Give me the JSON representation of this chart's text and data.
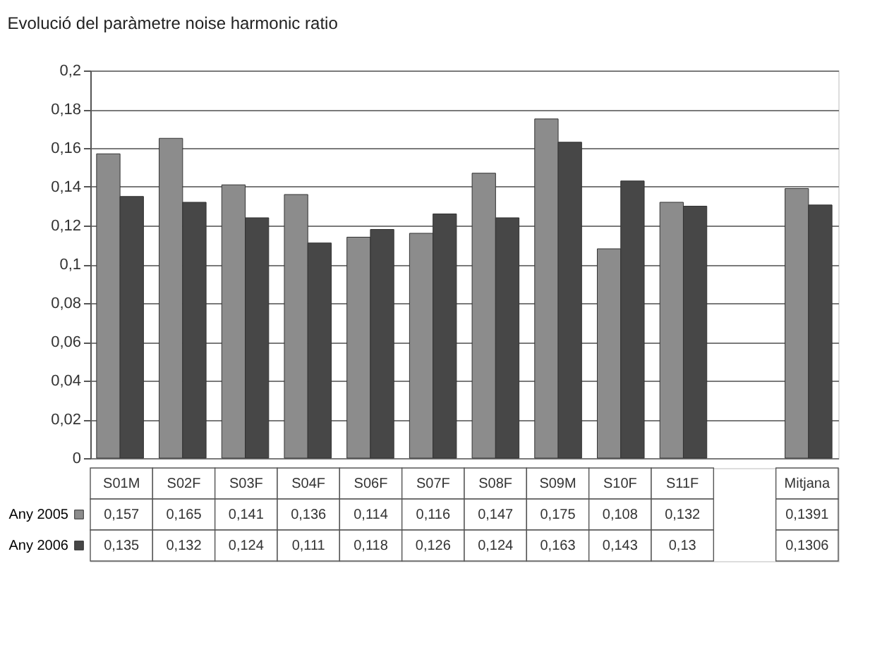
{
  "chart_data": {
    "type": "bar",
    "title": "Evolució del paràmetre noise harmonic ratio",
    "categories": [
      "S01M",
      "S02F",
      "S03F",
      "S04F",
      "S06F",
      "S07F",
      "S08F",
      "S09M",
      "S10F",
      "S11F",
      null,
      "Mitjana"
    ],
    "series": [
      {
        "name": "Any 2005",
        "color": "#8c8c8c",
        "values": [
          0.157,
          0.165,
          0.141,
          0.136,
          0.114,
          0.116,
          0.147,
          0.175,
          0.108,
          0.132,
          null,
          0.1391
        ],
        "value_labels": [
          "0,157",
          "0,165",
          "0,141",
          "0,136",
          "0,114",
          "0,116",
          "0,147",
          "0,175",
          "0,108",
          "0,132",
          null,
          "0,1391"
        ]
      },
      {
        "name": "Any 2006",
        "color": "#474747",
        "values": [
          0.135,
          0.132,
          0.124,
          0.111,
          0.118,
          0.126,
          0.124,
          0.163,
          0.143,
          0.13,
          null,
          0.1306
        ],
        "value_labels": [
          "0,135",
          "0,132",
          "0,124",
          "0,111",
          "0,118",
          "0,126",
          "0,124",
          "0,163",
          "0,143",
          "0,13",
          null,
          "0,1306"
        ]
      }
    ],
    "ylim": [
      0,
      0.2
    ],
    "yticks": [
      {
        "value": 0,
        "label": "0"
      },
      {
        "value": 0.02,
        "label": "0,02"
      },
      {
        "value": 0.04,
        "label": "0,04"
      },
      {
        "value": 0.06,
        "label": "0,06"
      },
      {
        "value": 0.08,
        "label": "0,08"
      },
      {
        "value": 0.1,
        "label": "0,1"
      },
      {
        "value": 0.12,
        "label": "0,12"
      },
      {
        "value": 0.14,
        "label": "0,14"
      },
      {
        "value": 0.16,
        "label": "0,16"
      },
      {
        "value": 0.18,
        "label": "0,18"
      },
      {
        "value": 0.2,
        "label": "0,2"
      }
    ],
    "grid": "y",
    "legend": "bottom"
  }
}
